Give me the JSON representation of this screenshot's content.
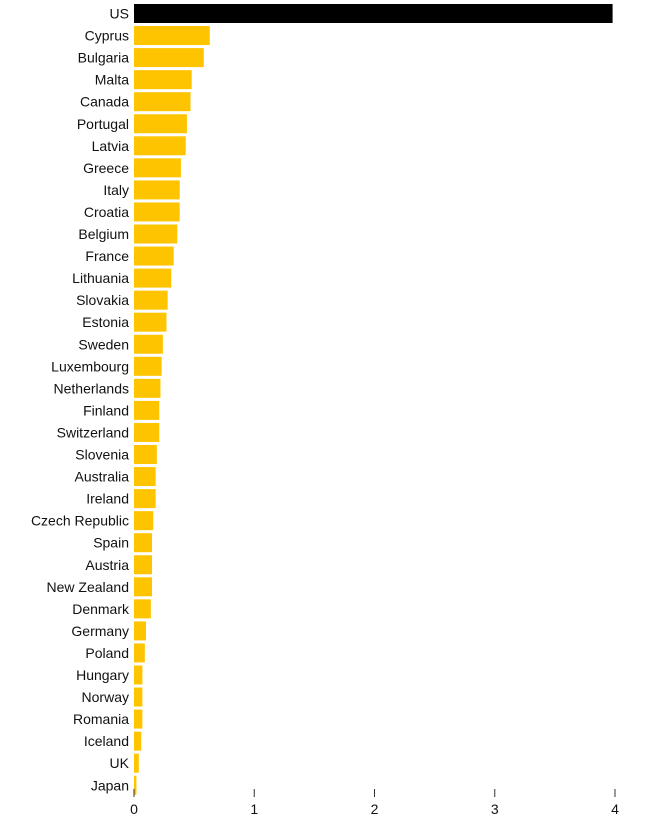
{
  "chart_data": {
    "type": "bar",
    "orientation": "horizontal",
    "categories": [
      "US",
      "Cyprus",
      "Bulgaria",
      "Malta",
      "Canada",
      "Portugal",
      "Latvia",
      "Greece",
      "Italy",
      "Croatia",
      "Belgium",
      "France",
      "Lithuania",
      "Slovakia",
      "Estonia",
      "Sweden",
      "Luxembourg",
      "Netherlands",
      "Finland",
      "Switzerland",
      "Slovenia",
      "Australia",
      "Ireland",
      "Czech Republic",
      "Spain",
      "Austria",
      "New Zealand",
      "Denmark",
      "Germany",
      "Poland",
      "Hungary",
      "Norway",
      "Romania",
      "Iceland",
      "UK",
      "Japan"
    ],
    "values": [
      3.98,
      0.63,
      0.58,
      0.48,
      0.47,
      0.44,
      0.43,
      0.39,
      0.38,
      0.38,
      0.36,
      0.33,
      0.31,
      0.28,
      0.27,
      0.24,
      0.23,
      0.22,
      0.21,
      0.21,
      0.19,
      0.18,
      0.18,
      0.16,
      0.15,
      0.15,
      0.15,
      0.14,
      0.1,
      0.09,
      0.07,
      0.07,
      0.07,
      0.06,
      0.04,
      0.02
    ],
    "highlight_category": "US",
    "colors": {
      "highlight": "#000000",
      "default": "#ffc400"
    },
    "x_ticks": [
      "0",
      "1",
      "2",
      "3",
      "4"
    ],
    "xlim": [
      0,
      4
    ],
    "title": "",
    "xlabel": "",
    "ylabel": "",
    "grid": false,
    "legend": "none"
  }
}
